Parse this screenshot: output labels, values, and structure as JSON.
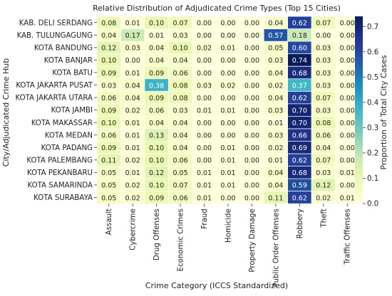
{
  "chart_data": {
    "type": "heatmap",
    "title": "Relative Distribution of Adjudicated Crime Types (Top 15 Cities)",
    "xlabel": "Crime Category (ICCS Standardized)",
    "ylabel": "City/Adjudicated Crime Hub",
    "colorbar_label": "Proportion of Total City Cases",
    "colorbar_ticks": [
      "0.0",
      "0.1",
      "0.2",
      "0.3",
      "0.4",
      "0.5",
      "0.6",
      "0.7"
    ],
    "vmin": 0.0,
    "vmax": 0.74,
    "colormap": "YlGnBu",
    "columns": [
      "Assault",
      "Cybercrime",
      "Drug Offenses",
      "Economic Crimes",
      "Fraud",
      "Homicide",
      "Property Damage",
      "Public Order Offenses",
      "Robbery",
      "Theft",
      "Traffic Offenses"
    ],
    "rows": [
      "KAB. DELI SERDANG",
      "KAB. TULUNGAGUNG",
      "KOTA BANDUNG",
      "KOTA BANJAR",
      "KOTA BATU",
      "KOTA JAKARTA PUSAT",
      "KOTA JAKARTA UTARA",
      "KOTA JAMBI",
      "KOTA MAKASSAR",
      "KOTA MEDAN",
      "KOTA PADANG",
      "KOTA PALEMBANG",
      "KOTA PEKANBARU",
      "KOTA SAMARINDA",
      "KOTA SURABAYA"
    ],
    "values": [
      [
        0.08,
        0.01,
        0.1,
        0.07,
        0.0,
        0.0,
        0.0,
        0.04,
        0.62,
        0.07,
        0.0
      ],
      [
        0.04,
        0.17,
        0.01,
        0.03,
        0.0,
        0.0,
        0.0,
        0.57,
        0.18,
        0.0,
        0.0
      ],
      [
        0.12,
        0.03,
        0.04,
        0.1,
        0.02,
        0.01,
        0.0,
        0.05,
        0.6,
        0.03,
        0.0
      ],
      [
        0.1,
        0.0,
        0.04,
        0.04,
        0.0,
        0.0,
        0.0,
        0.03,
        0.74,
        0.03,
        0.0
      ],
      [
        0.09,
        0.01,
        0.09,
        0.06,
        0.0,
        0.0,
        0.0,
        0.04,
        0.68,
        0.03,
        0.0
      ],
      [
        0.03,
        0.04,
        0.38,
        0.08,
        0.03,
        0.02,
        0.0,
        0.02,
        0.37,
        0.03,
        0.0
      ],
      [
        0.06,
        0.04,
        0.09,
        0.08,
        0.0,
        0.0,
        0.0,
        0.04,
        0.62,
        0.07,
        0.0
      ],
      [
        0.09,
        0.02,
        0.06,
        0.03,
        0.01,
        0.01,
        0.0,
        0.03,
        0.7,
        0.03,
        0.0
      ],
      [
        0.1,
        0.01,
        0.04,
        0.04,
        0.0,
        0.0,
        0.0,
        0.01,
        0.7,
        0.08,
        0.0
      ],
      [
        0.06,
        0.01,
        0.13,
        0.04,
        0.0,
        0.0,
        0.0,
        0.03,
        0.66,
        0.06,
        0.0
      ],
      [
        0.09,
        0.01,
        0.1,
        0.04,
        0.0,
        0.01,
        0.0,
        0.02,
        0.69,
        0.04,
        0.0
      ],
      [
        0.11,
        0.02,
        0.1,
        0.06,
        0.0,
        0.01,
        0.0,
        0.01,
        0.62,
        0.07,
        0.0
      ],
      [
        0.05,
        0.01,
        0.12,
        0.05,
        0.01,
        0.01,
        0.0,
        0.04,
        0.68,
        0.03,
        0.01
      ],
      [
        0.05,
        0.02,
        0.1,
        0.07,
        0.01,
        0.01,
        0.0,
        0.04,
        0.59,
        0.12,
        0.0
      ],
      [
        0.05,
        0.02,
        0.09,
        0.06,
        0.01,
        0.0,
        0.0,
        0.11,
        0.62,
        0.02,
        0.01
      ]
    ]
  }
}
